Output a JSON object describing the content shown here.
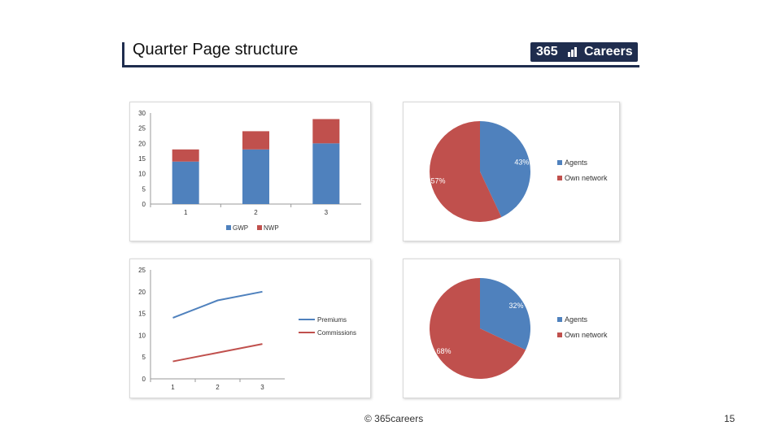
{
  "slide": {
    "title": "Quarter Page structure",
    "logo": {
      "number": "365",
      "word": "Careers"
    },
    "footer": "© 365careers",
    "page_number": "15"
  },
  "colors": {
    "blue": "#4f81bd",
    "red": "#c0504d",
    "navy": "#1f2d4e"
  },
  "chart_data": [
    {
      "type": "bar",
      "stacked": true,
      "categories": [
        "1",
        "2",
        "3"
      ],
      "series": [
        {
          "name": "GWP",
          "values": [
            14,
            18,
            20
          ]
        },
        {
          "name": "NWP",
          "values": [
            4,
            6,
            8
          ]
        }
      ],
      "ylim": [
        0,
        30
      ],
      "yticks": [
        0,
        5,
        10,
        15,
        20,
        25,
        30
      ],
      "legend": "bottom"
    },
    {
      "type": "pie",
      "slices": [
        {
          "label": "Agents",
          "value": 43,
          "text": "43%"
        },
        {
          "label": "Own network",
          "value": 57,
          "text": "57%"
        }
      ],
      "legend": "right"
    },
    {
      "type": "line",
      "x": [
        "1",
        "2",
        "3"
      ],
      "series": [
        {
          "name": "Premiums",
          "values": [
            14,
            18,
            20
          ]
        },
        {
          "name": "Commissions",
          "values": [
            4,
            6,
            8
          ]
        }
      ],
      "ylim": [
        0,
        25
      ],
      "yticks": [
        0,
        5,
        10,
        15,
        20,
        25
      ],
      "legend": "right"
    },
    {
      "type": "pie",
      "slices": [
        {
          "label": "Agents",
          "value": 32,
          "text": "32%"
        },
        {
          "label": "Own network",
          "value": 68,
          "text": "68%"
        }
      ],
      "legend": "right"
    }
  ]
}
